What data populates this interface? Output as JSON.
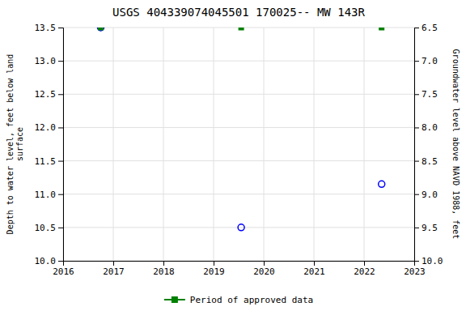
{
  "chart_data": {
    "type": "scatter",
    "title": "USGS 404339074045501 170025-- MW 143R",
    "y_label": "Depth to water level, feet below land\n surface",
    "y2_label": "Groundwater level above NAVD 1988, feet",
    "x": [
      2016.75,
      2019.55,
      2022.35
    ],
    "series": [
      {
        "values": [
          13.5,
          10.5,
          11.15
        ],
        "color": "#0000ff",
        "marker": "open-circle"
      },
      {
        "name": "Period of approved data",
        "values": [
          13.5,
          13.5,
          13.5
        ],
        "color": "#008000",
        "marker": "square"
      }
    ],
    "xlim": [
      2016,
      2023
    ],
    "xticks": [
      2016,
      2017,
      2018,
      2019,
      2020,
      2021,
      2022,
      2023
    ],
    "ylim": [
      10.0,
      13.5
    ],
    "yticks": [
      {
        "value": 10.0,
        "label": "10.0"
      },
      10.5,
      {
        "value": 11.0,
        "label": "11.0"
      },
      11.5,
      {
        "value": 12.0,
        "label": "12.0"
      },
      12.5,
      {
        "value": 13.0,
        "label": "13.0"
      },
      13.5
    ],
    "y2lim": [
      10.0,
      6.5
    ],
    "y2ticks": [
      {
        "value": 10.0,
        "label": "10.0"
      },
      9.5,
      {
        "value": 9.0,
        "label": "9.0"
      },
      8.5,
      {
        "value": 8.0,
        "label": "8.0"
      },
      7.5,
      {
        "value": 7.0,
        "label": "7.0"
      },
      6.5
    ],
    "grid": true,
    "legend": "bottom"
  }
}
